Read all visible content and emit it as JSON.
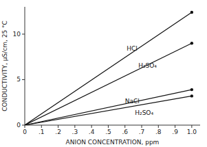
{
  "chart_data": {
    "type": "line",
    "x_label": "ANION CONCENTRATION, ppm",
    "y_label": "CONDUCTIVITY, μS/cm, 25 °C",
    "xlim": [
      0,
      1.05
    ],
    "ylim": [
      0,
      13
    ],
    "xticks": [
      0,
      {
        "value": 0.1,
        "label": ".1"
      },
      {
        "value": 0.2,
        "label": ".2"
      },
      {
        "value": 0.3,
        "label": ".3"
      },
      {
        "value": 0.4,
        "label": ".4"
      },
      {
        "value": 0.5,
        "label": ".5"
      },
      {
        "value": 0.6,
        "label": ".6"
      },
      {
        "value": 0.7,
        "label": ".7"
      },
      {
        "value": 0.8,
        "label": ".8"
      },
      {
        "value": 0.9,
        "label": ".9"
      },
      {
        "value": 1.0,
        "label": "1.0"
      }
    ],
    "yticks": [
      0,
      5,
      10
    ],
    "grid": false,
    "x": [
      0,
      1.0
    ],
    "series": [
      {
        "color": "#111111",
        "marker": "end-dot",
        "values": [
          0,
          12.4
        ]
      },
      {
        "color": "#111111",
        "marker": "end-dot",
        "values": [
          0,
          9.0
        ]
      },
      {
        "color": "#111111",
        "marker": "end-dot",
        "values": [
          0,
          3.9
        ]
      },
      {
        "color": "#111111",
        "marker": "end-dot",
        "values": [
          0,
          3.2
        ]
      }
    ],
    "annotations": [
      {
        "text": "HCl",
        "x": 0.61,
        "y": 8.4
      },
      {
        "text": "H₂SO₄",
        "x": 0.68,
        "y": 6.55
      },
      {
        "text": "NaCl",
        "x": 0.6,
        "y": 2.65
      },
      {
        "text": "H₂SO₄",
        "x": 0.66,
        "y": 1.35
      }
    ]
  }
}
